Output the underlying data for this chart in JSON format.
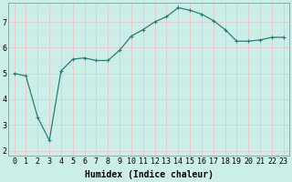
{
  "x": [
    0,
    1,
    2,
    3,
    4,
    5,
    6,
    7,
    8,
    9,
    10,
    11,
    12,
    13,
    14,
    15,
    16,
    17,
    18,
    19,
    20,
    21,
    22,
    23
  ],
  "y": [
    5.0,
    4.9,
    3.3,
    2.4,
    5.1,
    5.55,
    5.6,
    5.5,
    5.5,
    5.9,
    6.45,
    6.7,
    7.0,
    7.2,
    7.55,
    7.45,
    7.3,
    7.05,
    6.7,
    6.25,
    6.25,
    6.3,
    6.4,
    6.4
  ],
  "line_color": "#2d7d74",
  "marker": "+",
  "marker_size": 3,
  "marker_linewidth": 0.8,
  "linewidth": 0.9,
  "xlabel": "Humidex (Indice chaleur)",
  "xlim": [
    -0.5,
    23.5
  ],
  "ylim": [
    1.8,
    7.75
  ],
  "yticks": [
    2,
    3,
    4,
    5,
    6,
    7
  ],
  "xticks": [
    0,
    1,
    2,
    3,
    4,
    5,
    6,
    7,
    8,
    9,
    10,
    11,
    12,
    13,
    14,
    15,
    16,
    17,
    18,
    19,
    20,
    21,
    22,
    23
  ],
  "bg_color": "#cceee8",
  "grid_major_color": "#e8c8c8",
  "grid_minor_color": "#cce8e4",
  "tick_fontsize": 6,
  "xlabel_fontsize": 7
}
